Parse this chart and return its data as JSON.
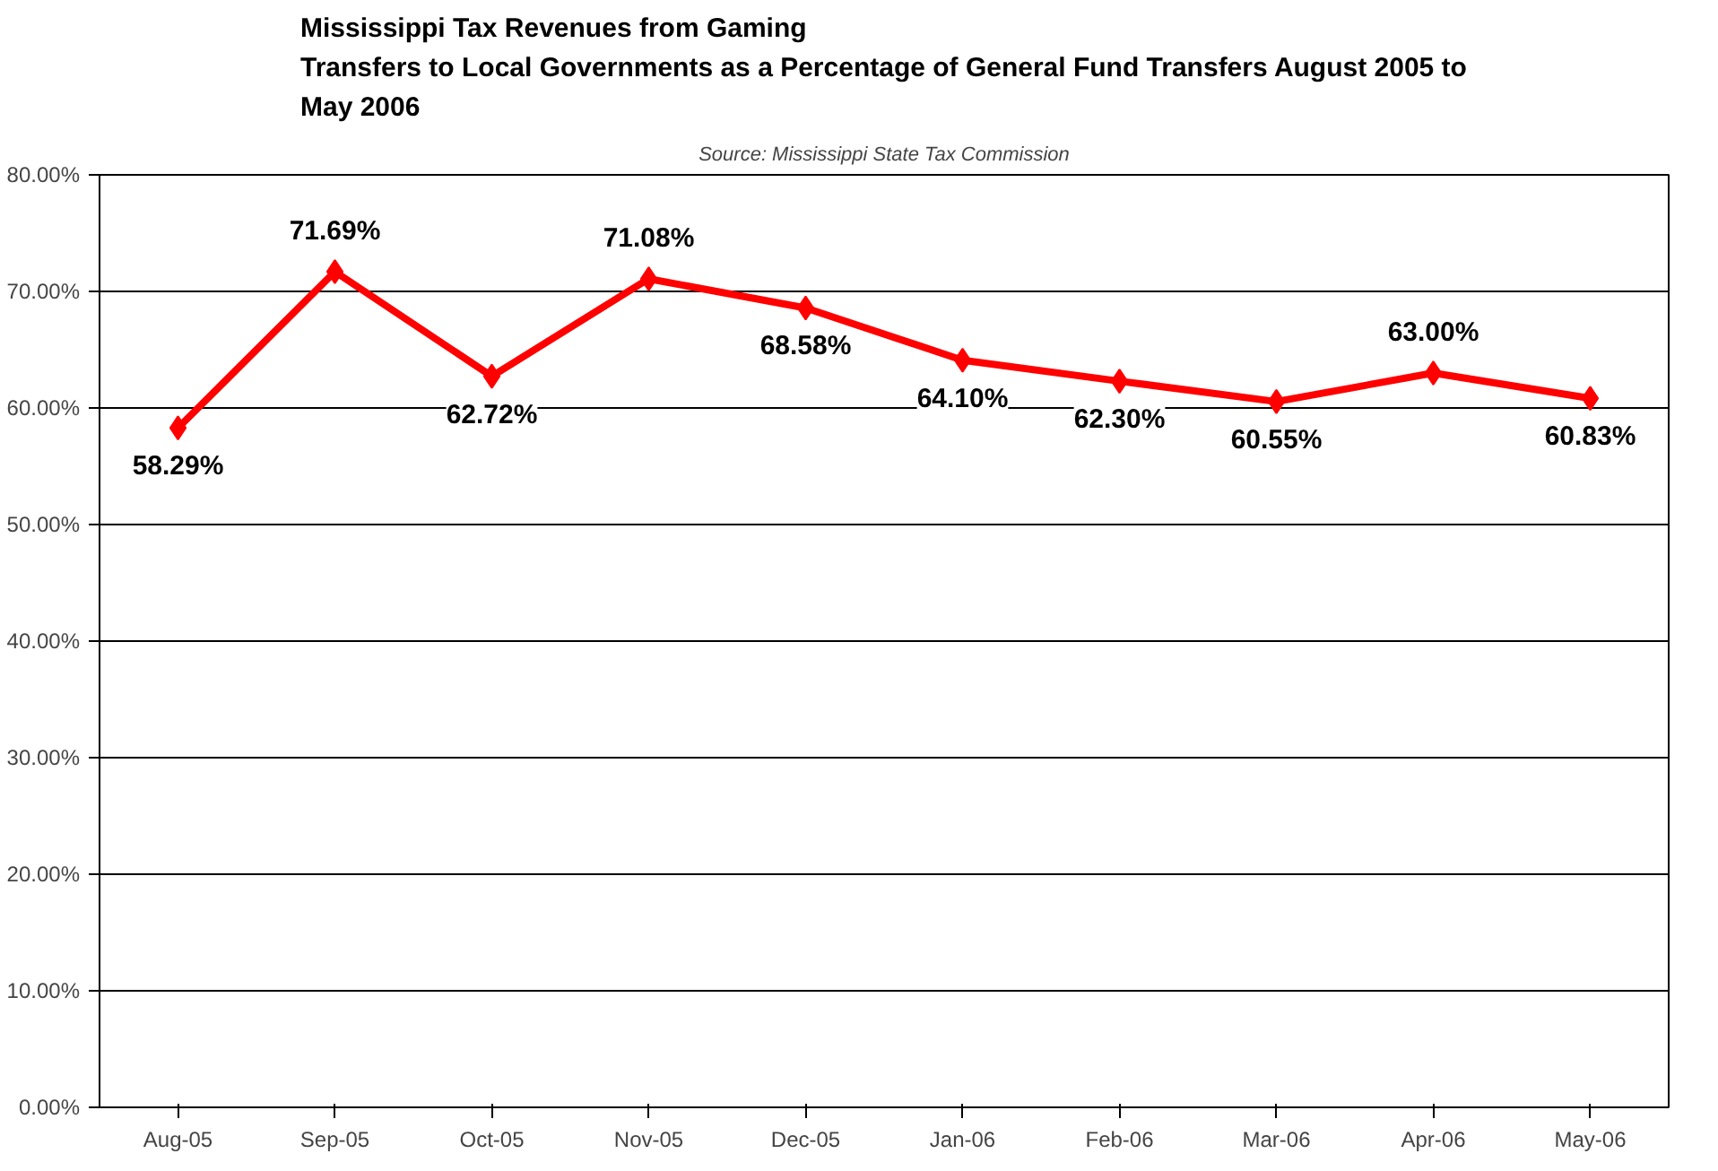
{
  "chart_data": {
    "type": "line",
    "title": "Mississippi Tax Revenues from Gaming\nTransfers to Local Governments as a Percentage of General Fund Transfers August 2005 to\nMay 2006",
    "subtitle": "Source: Mississippi State Tax Commission",
    "categories": [
      "Aug-05",
      "Sep-05",
      "Oct-05",
      "Nov-05",
      "Dec-05",
      "Jan-06",
      "Feb-06",
      "Mar-06",
      "Apr-06",
      "May-06"
    ],
    "series": [
      {
        "color": "#ff0000",
        "values": [
          58.29,
          71.69,
          62.72,
          71.08,
          68.58,
          64.1,
          62.3,
          60.55,
          63.0,
          60.83
        ]
      }
    ],
    "value_labels": [
      "58.29%",
      "71.69%",
      "62.72%",
      "71.08%",
      "68.58%",
      "64.10%",
      "62.30%",
      "60.55%",
      "63.00%",
      "60.83%"
    ],
    "ylim": [
      0,
      80
    ],
    "yticks": [
      {
        "value": 0,
        "label": "0.00%"
      },
      {
        "value": 10,
        "label": "10.00%"
      },
      {
        "value": 20,
        "label": "20.00%"
      },
      {
        "value": 30,
        "label": "30.00%"
      },
      {
        "value": 40,
        "label": "40.00%"
      },
      {
        "value": 50,
        "label": "50.00%"
      },
      {
        "value": 60,
        "label": "60.00%"
      },
      {
        "value": 70,
        "label": "70.00%"
      },
      {
        "value": 80,
        "label": "80.00%"
      }
    ],
    "grid": "y",
    "marker": "diamond",
    "line_style": "solid"
  }
}
